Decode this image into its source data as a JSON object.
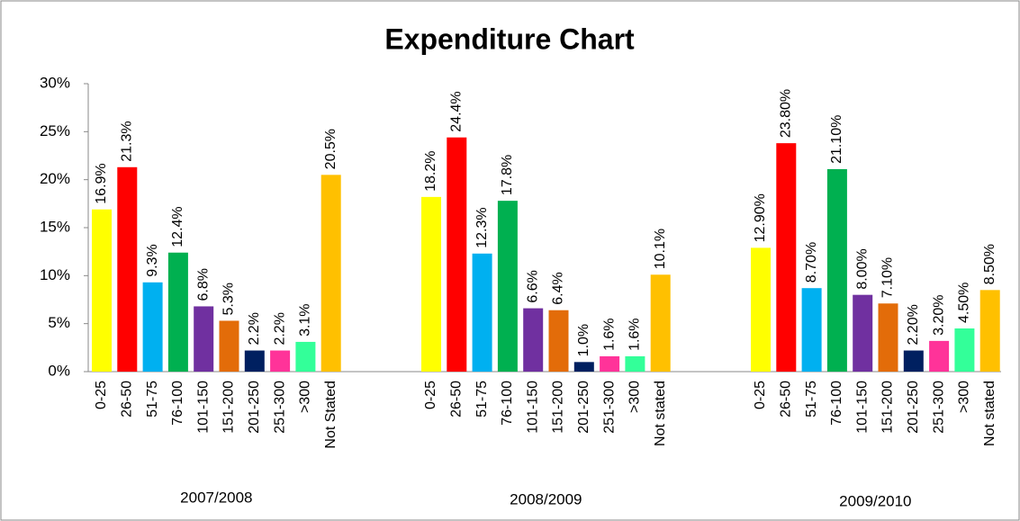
{
  "chart_data": {
    "type": "bar",
    "title": "Expenditure Chart",
    "ylim": [
      0,
      30
    ],
    "yticks": [
      {
        "value": 0,
        "label": "0%"
      },
      {
        "value": 5,
        "label": "5%"
      },
      {
        "value": 10,
        "label": "10%"
      },
      {
        "value": 15,
        "label": "15%"
      },
      {
        "value": 20,
        "label": "20%"
      },
      {
        "value": 25,
        "label": "25%"
      },
      {
        "value": 30,
        "label": "30%"
      }
    ],
    "colors": [
      "#ffff00",
      "#ff0000",
      "#00b0f0",
      "#00b050",
      "#7030a0",
      "#e36c09",
      "#002060",
      "#ff3399",
      "#33ff99",
      "#ffc000"
    ],
    "groups": [
      {
        "name": "2007/2008",
        "categories": [
          "0-25",
          "26-50",
          "51-75",
          "76-100",
          "101-150",
          "151-200",
          "201-250",
          "251-300",
          ">300",
          "Not Stated"
        ],
        "values": [
          16.9,
          21.3,
          9.3,
          12.4,
          6.8,
          5.3,
          2.2,
          2.2,
          3.1,
          20.5
        ],
        "value_labels": [
          "16.9%",
          "21.3%",
          "9.3%",
          "12.4%",
          "6.8%",
          "5.3%",
          "2.2%",
          "2.2%",
          "3.1%",
          "20.5%"
        ]
      },
      {
        "name": "2008/2009",
        "categories": [
          "0-25",
          "26-50",
          "51-75",
          "76-100",
          "101-150",
          "151-200",
          "201-250",
          "251-300",
          ">300",
          "Not stated"
        ],
        "values": [
          18.2,
          24.4,
          12.3,
          17.8,
          6.6,
          6.4,
          1.0,
          1.6,
          1.6,
          10.1
        ],
        "value_labels": [
          "18.2%",
          "24.4%",
          "12.3%",
          "17.8%",
          "6.6%",
          "6.4%",
          "1.0%",
          "1.6%",
          "1.6%",
          "10.1%"
        ]
      },
      {
        "name": "2009/2010",
        "categories": [
          "0-25",
          "26-50",
          "51-75",
          "76-100",
          "101-150",
          "151-200",
          "201-250",
          "251-300",
          ">300",
          "Not stated"
        ],
        "values": [
          12.9,
          23.8,
          8.7,
          21.1,
          8.0,
          7.1,
          2.2,
          3.2,
          4.5,
          8.5
        ],
        "value_labels": [
          "12.90%",
          "23.80%",
          "8.70%",
          "21.10%",
          "8.00%",
          "7.10%",
          "2.20%",
          "3.20%",
          "4.50%",
          "8.50%"
        ]
      }
    ]
  }
}
